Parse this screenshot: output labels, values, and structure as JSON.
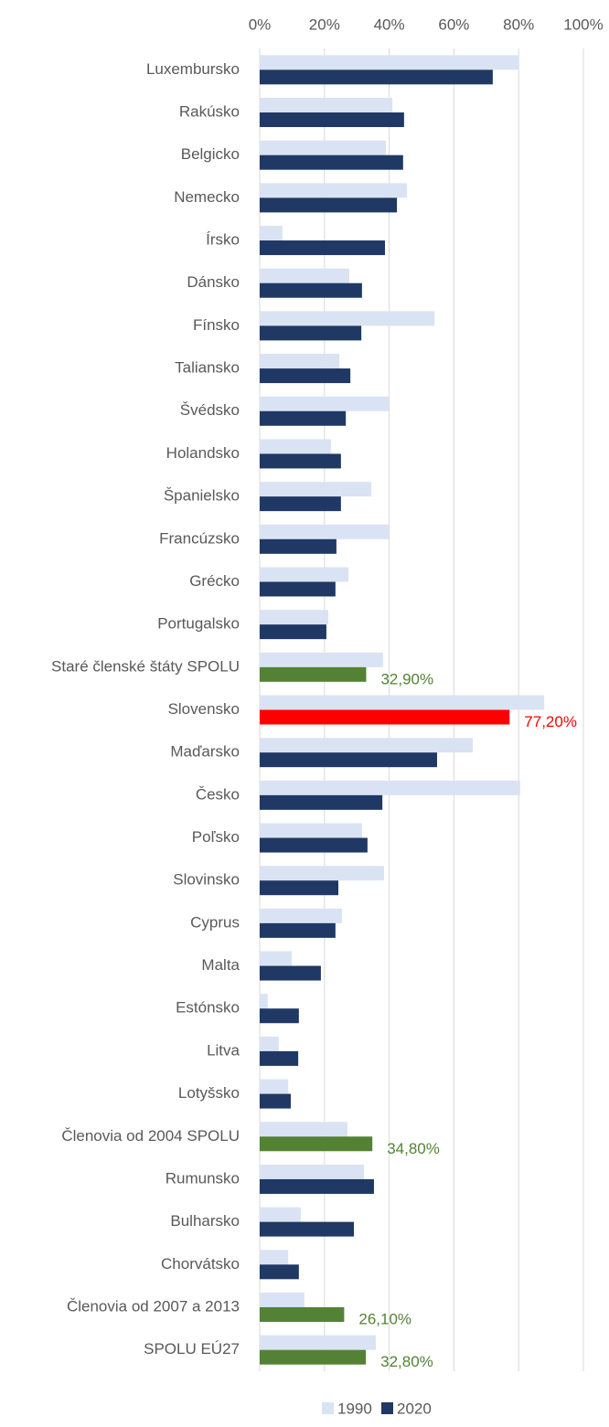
{
  "chart_data": {
    "type": "hbar",
    "categories": [
      "Luxembursko",
      "Rakúsko",
      "Belgicko",
      "Nemecko",
      "Írsko",
      "Dánsko",
      "Fínsko",
      "Taliansko",
      "Švédsko",
      "Holandsko",
      "Španielsko",
      "Francúzsko",
      "Grécko",
      "Portugalsko",
      "Staré členské štáty SPOLU",
      "Slovensko",
      "Maďarsko",
      "Česko",
      "Poľsko",
      "Slovinsko",
      "Cyprus",
      "Malta",
      "Estónsko",
      "Litva",
      "Lotyšsko",
      "Členovia od 2004 SPOLU",
      "Rumunsko",
      "Bulharsko",
      "Chorvátsko",
      "Členovia od 2007 a 2013",
      "SPOLU EÚ27"
    ],
    "series": [
      {
        "name": "1990",
        "color": "#dae3f3",
        "values": [
          80,
          41,
          39,
          45.5,
          7,
          27.7,
          54,
          24.6,
          39.8,
          22,
          34.5,
          39.8,
          27.4,
          21.2,
          38.1,
          87.9,
          65.8,
          80.5,
          31.6,
          38.4,
          25.4,
          9.9,
          2.5,
          5.9,
          8.8,
          27.1,
          32.2,
          12.7,
          8.8,
          13.8,
          35.9
        ]
      },
      {
        "name": "2020",
        "color": "#203864",
        "colors": [
          "#203864",
          "#203864",
          "#203864",
          "#203864",
          "#203864",
          "#203864",
          "#203864",
          "#203864",
          "#203864",
          "#203864",
          "#203864",
          "#203864",
          "#203864",
          "#203864",
          "#548235",
          "#ff0000",
          "#203864",
          "#203864",
          "#203864",
          "#203864",
          "#203864",
          "#203864",
          "#203864",
          "#203864",
          "#203864",
          "#548235",
          "#203864",
          "#203864",
          "#203864",
          "#548235",
          "#548235"
        ],
        "values": [
          72,
          44.6,
          44.3,
          42.4,
          38.7,
          31.6,
          31.4,
          28,
          26.6,
          25.1,
          25.1,
          23.7,
          23.4,
          20.6,
          32.9,
          77.2,
          54.8,
          37.9,
          33.3,
          24.3,
          23.4,
          18.9,
          12.1,
          11.9,
          9.6,
          34.8,
          35.3,
          29.1,
          12.1,
          26.1,
          32.8
        ],
        "value_labels": [
          null,
          null,
          null,
          null,
          null,
          null,
          null,
          null,
          null,
          null,
          null,
          null,
          null,
          null,
          "32,90%",
          "77,20%",
          null,
          null,
          null,
          null,
          null,
          null,
          null,
          null,
          null,
          "34,80%",
          null,
          null,
          null,
          "26,10%",
          "32,80%"
        ]
      }
    ],
    "xlim": [
      0,
      100
    ],
    "xticks": [
      {
        "value": 0,
        "label": "0%"
      },
      {
        "value": 20,
        "label": "20%"
      },
      {
        "value": 40,
        "label": "40%"
      },
      {
        "value": 60,
        "label": "60%"
      },
      {
        "value": 80,
        "label": "80%"
      },
      {
        "value": 100,
        "label": "100%"
      }
    ],
    "grid": true,
    "legend": "bottom"
  }
}
